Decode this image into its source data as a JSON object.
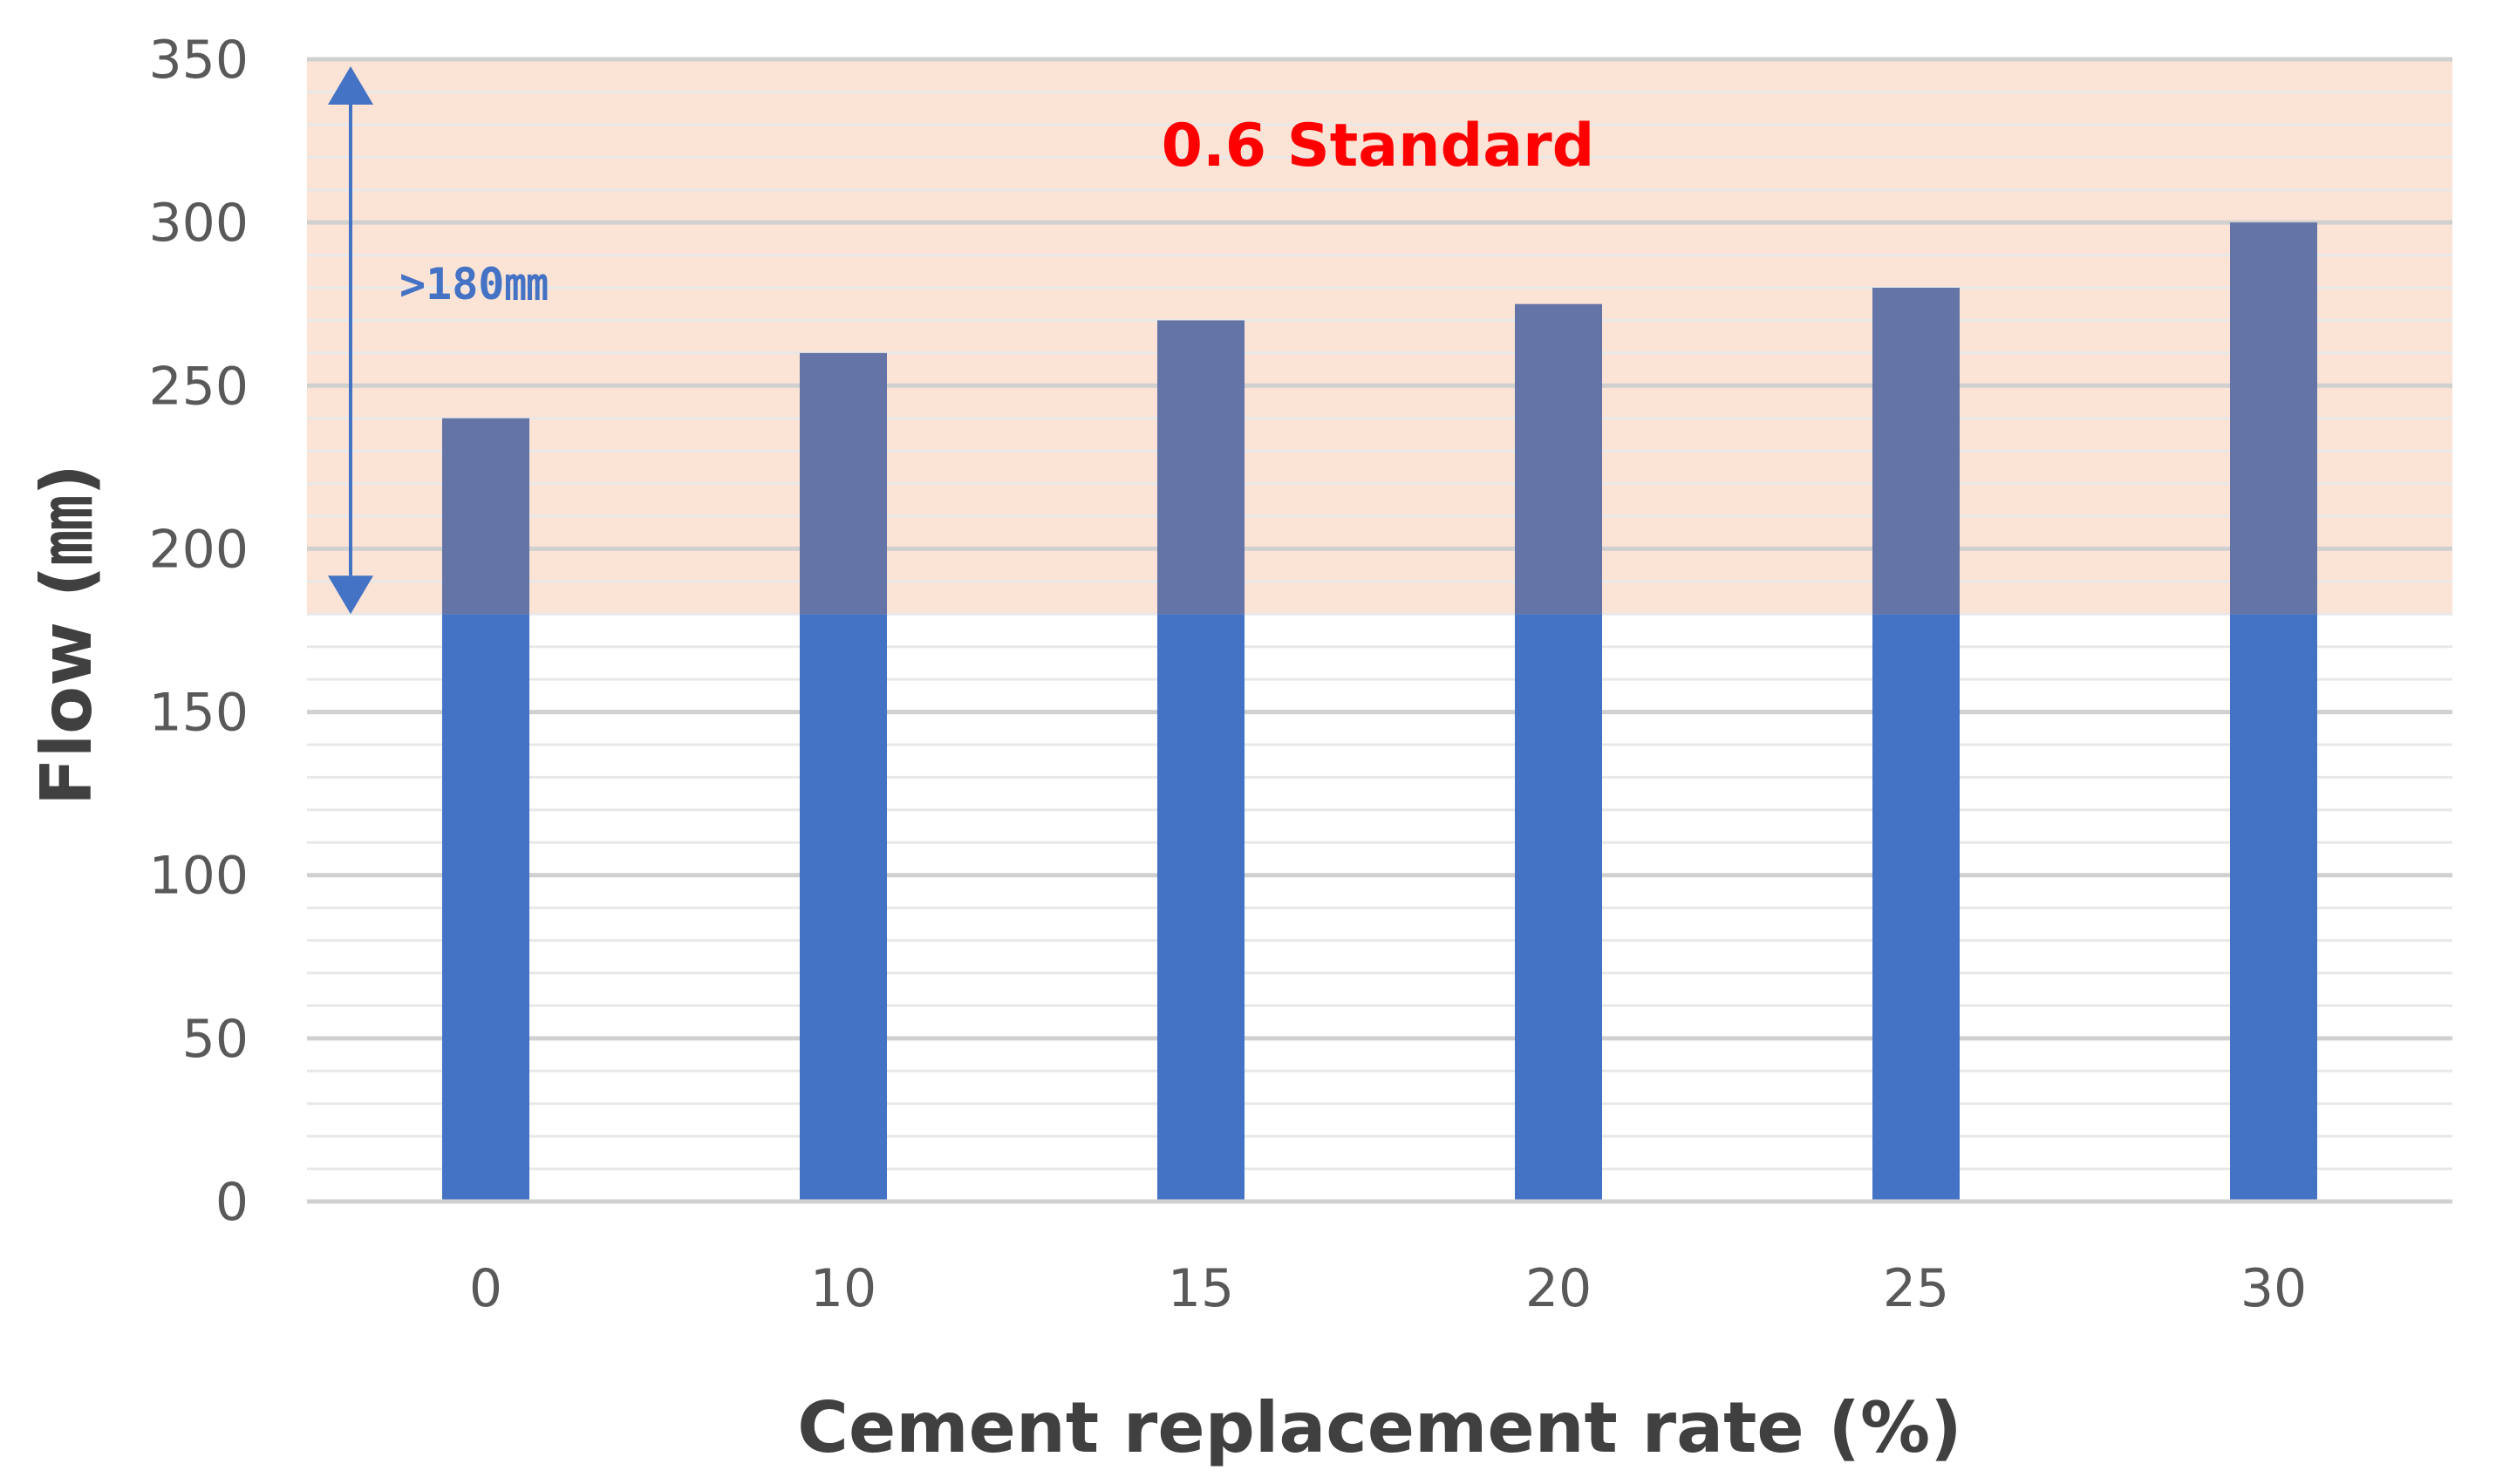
{
  "chart_data": {
    "type": "bar",
    "categories": [
      "0",
      "10",
      "15",
      "20",
      "25",
      "30"
    ],
    "values": [
      240,
      260,
      270,
      275,
      280,
      300
    ],
    "xlabel": "Cement replacement rate (%)",
    "ylabel": "Flow (㎜)",
    "ylim": [
      0,
      350
    ],
    "yticks": [
      "0",
      "50",
      "100",
      "150",
      "200",
      "250",
      "300",
      "350"
    ],
    "grid": true,
    "threshold": 180,
    "band_label": "0.6 Standard",
    "range_label": ">180㎜",
    "colors": {
      "bar": "#4472c4",
      "bar_in_band": "#6574a6",
      "band": "#fbe3d6",
      "major_grid": "#d0d0d0",
      "minor_grid": "#e8e8e8",
      "standard_text": "#ff0000",
      "arrow": "#4472c4"
    }
  }
}
